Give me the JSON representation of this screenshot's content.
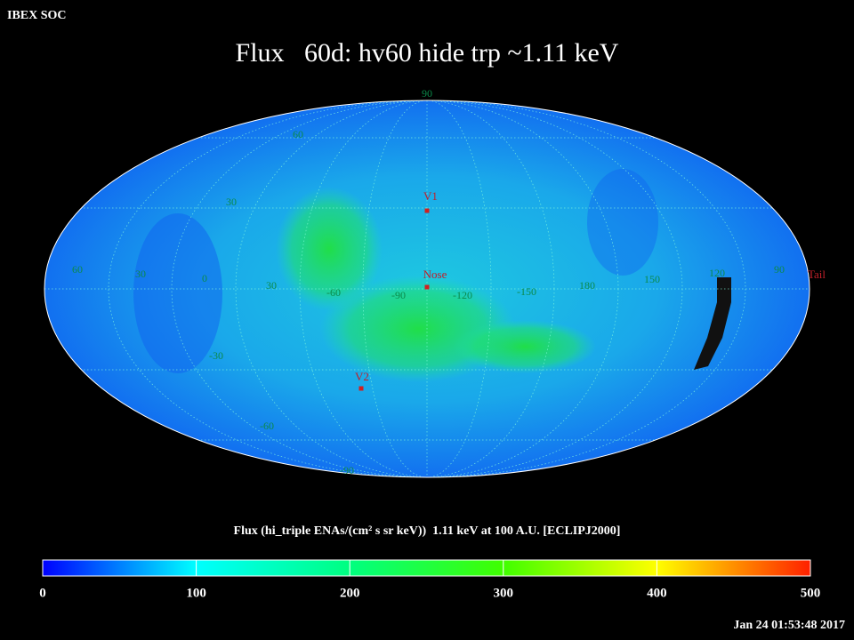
{
  "header": {
    "corner": "IBEX SOC",
    "title": "Flux   60d: hv60 hide trp ~1.11 keV"
  },
  "map": {
    "longitude_labels": [
      "60",
      "30",
      "0",
      "30",
      "-60",
      "-90",
      "-120",
      "-150",
      "180",
      "150",
      "120",
      "90"
    ],
    "latitude_labels": [
      "90",
      "60",
      "30",
      "-30",
      "-60",
      "-90"
    ],
    "markers": [
      "V1",
      "Nose",
      "V2",
      "Tail"
    ]
  },
  "colorbar": {
    "label": "Flux (hi_triple ENAs/(cm² s sr keV))  1.11 keV at 100 A.U. [ECLIPJ2000]",
    "range": [
      0,
      500
    ],
    "ticks": [
      0,
      100,
      200,
      300,
      400,
      500
    ]
  },
  "footer": {
    "timestamp": "Jan 24 01:53:48 2017"
  }
}
